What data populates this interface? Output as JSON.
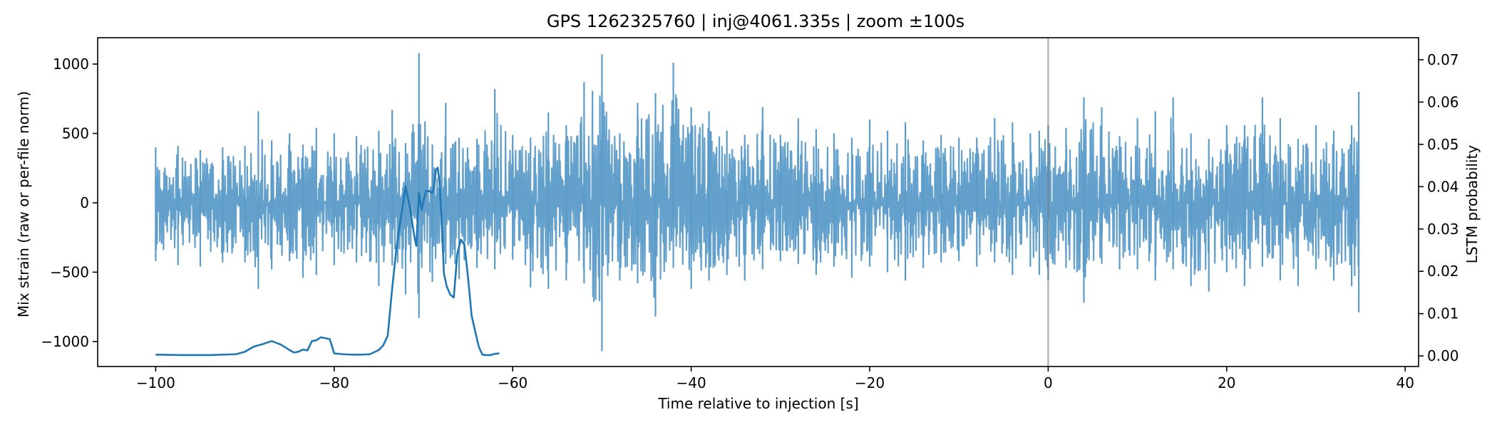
{
  "chart_data": {
    "type": "line",
    "title": "GPS 1262325760 | inj@4061.335s | zoom ±100s",
    "xlabel": "Time relative to injection [s]",
    "ylabel": "Mix strain (raw or per-file norm)",
    "ylabel_right": "LSTM probability",
    "xlim": [
      -106.5,
      41.5
    ],
    "ylim": [
      -1180,
      1190
    ],
    "ylim_right": [
      -0.0025,
      0.0752
    ],
    "xticks": [
      -100,
      -80,
      -60,
      -40,
      -20,
      0,
      20,
      40
    ],
    "xtick_labels": [
      "−100",
      "−80",
      "−60",
      "−40",
      "−20",
      "0",
      "20",
      "40"
    ],
    "yticks": [
      -1000,
      -500,
      0,
      500,
      1000
    ],
    "ytick_labels": [
      "−1000",
      "−500",
      "0",
      "500",
      "1000"
    ],
    "yticks_right": [
      0.0,
      0.01,
      0.02,
      0.03,
      0.04,
      0.05,
      0.06,
      0.07
    ],
    "ytick_labels_right": [
      "0.00",
      "0.01",
      "0.02",
      "0.03",
      "0.04",
      "0.05",
      "0.06",
      "0.07"
    ],
    "grid": false,
    "legend": "none",
    "injection_marker_x": 0,
    "series": [
      {
        "axis": "left",
        "color": "#5b9bc9",
        "style": "dense oscillating strain",
        "x": [
          -100,
          -97.5,
          -95,
          -92.5,
          -90,
          -88.5,
          -87,
          -85,
          -83.5,
          -82,
          -80,
          -77.5,
          -75,
          -73.5,
          -72,
          -70.5,
          -69,
          -67.5,
          -66,
          -64,
          -62,
          -60,
          -58,
          -56,
          -54,
          -52,
          -50,
          -48,
          -46,
          -44,
          -42,
          -40,
          -38,
          -36,
          -34,
          -32,
          -30,
          -28,
          -26,
          -24,
          -22,
          -20,
          -18,
          -16,
          -14,
          -12,
          -10,
          -8,
          -6,
          -4,
          -2,
          0,
          2,
          4,
          -1,
          6,
          8,
          10,
          12,
          14,
          16,
          18,
          20,
          22,
          24,
          26,
          28,
          30,
          32,
          34,
          34.8
        ],
        "max": [
          400,
          410,
          380,
          400,
          410,
          660,
          450,
          500,
          420,
          540,
          500,
          480,
          520,
          670,
          430,
          1080,
          420,
          720,
          470,
          460,
          820,
          490,
          470,
          650,
          560,
          870,
          1070,
          500,
          720,
          790,
          1010,
          690,
          660,
          520,
          490,
          690,
          490,
          610,
          530,
          500,
          470,
          600,
          520,
          580,
          450,
          490,
          470,
          470,
          610,
          580,
          500,
          560,
          540,
          760,
          520,
          690,
          480,
          610,
          660,
          760,
          500,
          460,
          560,
          560,
          760,
          610,
          460,
          560,
          520,
          560,
          800
        ],
        "min": [
          -420,
          -450,
          -460,
          -430,
          -430,
          -620,
          -480,
          -420,
          -540,
          -520,
          -450,
          -430,
          -600,
          -450,
          -660,
          -830,
          -570,
          -440,
          -550,
          -470,
          -480,
          -410,
          -610,
          -620,
          -560,
          -580,
          -1070,
          -560,
          -580,
          -820,
          -470,
          -620,
          -560,
          -520,
          -560,
          -480,
          -420,
          -440,
          -520,
          -460,
          -540,
          -460,
          -500,
          -560,
          -470,
          -430,
          -420,
          -460,
          -430,
          -520,
          -460,
          -560,
          -470,
          -720,
          -520,
          -440,
          -480,
          -480,
          -560,
          -480,
          -600,
          -640,
          -500,
          -600,
          -460,
          -560,
          -600,
          -480,
          -560,
          -600,
          -790
        ]
      },
      {
        "axis": "right",
        "color": "#1f77b4",
        "style": "line",
        "x": [
          -100,
          -97,
          -94,
          -91,
          -90,
          -89,
          -88,
          -87,
          -86,
          -85,
          -84.5,
          -84,
          -83.5,
          -83,
          -82.5,
          -82,
          -81.5,
          -81,
          -80.5,
          -80,
          -79,
          -78,
          -77,
          -76,
          -75,
          -74.5,
          -74,
          -73.5,
          -73,
          -72.5,
          -72,
          -71.5,
          -71,
          -70.8,
          -70.5,
          -70.2,
          -70,
          -69.7,
          -69.4,
          -69,
          -68.8,
          -68.6,
          -68.4,
          -68.2,
          -68,
          -67.7,
          -67.4,
          -67,
          -66.6,
          -66.2,
          -65.8,
          -65.4,
          -65,
          -64.6,
          -64.2,
          -63.8,
          -63.4,
          -63,
          -62.5,
          -62,
          -61.5
        ],
        "y": [
          0.0003,
          0.0002,
          0.0002,
          0.0004,
          0.001,
          0.0022,
          0.0028,
          0.0035,
          0.0027,
          0.0014,
          0.0008,
          0.001,
          0.0015,
          0.0013,
          0.0035,
          0.0037,
          0.0044,
          0.0042,
          0.004,
          0.0006,
          0.0004,
          0.0003,
          0.0003,
          0.0004,
          0.0014,
          0.0025,
          0.0048,
          0.016,
          0.026,
          0.033,
          0.04,
          0.035,
          0.028,
          0.026,
          0.0385,
          0.0345,
          0.0365,
          0.039,
          0.039,
          0.0385,
          0.04,
          0.044,
          0.0445,
          0.041,
          0.0335,
          0.0195,
          0.0165,
          0.0145,
          0.0138,
          0.0242,
          0.0275,
          0.0262,
          0.0185,
          0.0095,
          0.0058,
          0.0022,
          0.0003,
          0.0002,
          0.0002,
          0.0005,
          0.0006
        ]
      }
    ]
  }
}
